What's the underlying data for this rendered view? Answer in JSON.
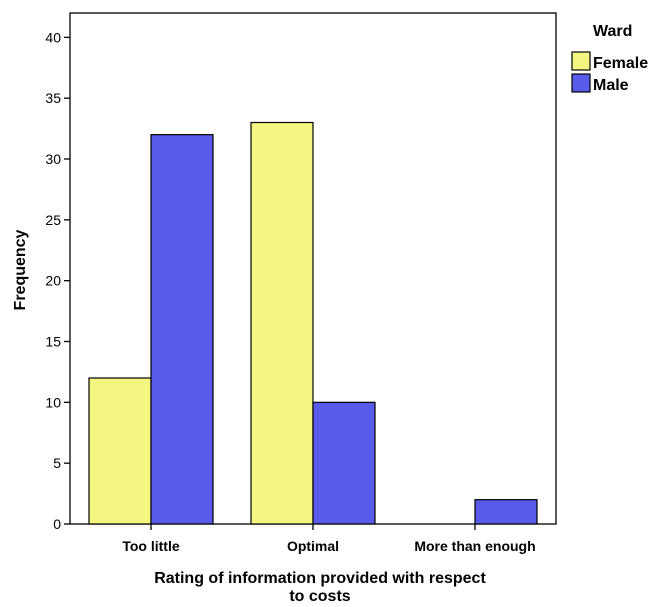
{
  "chart_data": {
    "type": "bar",
    "xlabel_line1": "Rating of information provided with respect",
    "xlabel_line2": "to costs",
    "ylabel": "Frequency",
    "categories": [
      "Too little",
      "Optimal",
      "More than enough"
    ],
    "series": [
      {
        "name": "Female",
        "values": [
          12,
          33,
          0
        ],
        "color": "#f5f582"
      },
      {
        "name": "Male",
        "values": [
          32,
          10,
          2
        ],
        "color": "#5a5aea"
      }
    ],
    "ylim": [
      0,
      42
    ],
    "yticks": [
      0,
      5,
      10,
      15,
      20,
      25,
      30,
      35,
      40
    ],
    "legend_title": "Ward",
    "legend_position": "top-right",
    "grid": false
  }
}
